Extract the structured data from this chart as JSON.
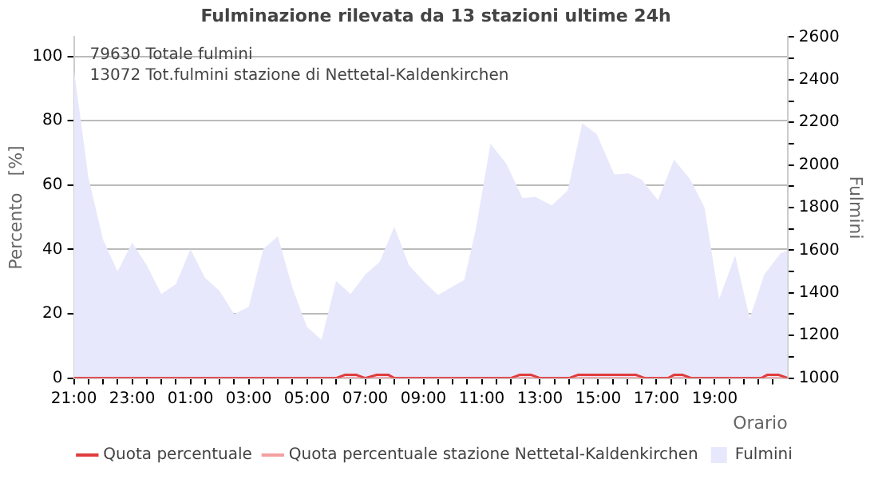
{
  "chart_data": {
    "type": "area",
    "title": "Fulminazione rilevata da 13 stazioni ultime 24h",
    "xlabel": "Orario",
    "ylabel": "Percento   [%]",
    "y2label": "Fulmini",
    "annotations": [
      "79630 Totale fulmini",
      "13072 Tot.fulmini stazione di Nettetal-Kaldenkirchen"
    ],
    "xlim": [
      "--01-01T21:00",
      "--01-02T21:30"
    ],
    "xticks": [
      {
        "value": "--01-01T21:00",
        "label": "21:00"
      },
      {
        "value": "--01-01T21:30",
        "label": null
      },
      {
        "value": "--01-01T22:00",
        "label": null
      },
      {
        "value": "--01-01T22:30",
        "label": null
      },
      {
        "value": "--01-01T23:00",
        "label": "23:00"
      },
      {
        "value": "--01-01T23:30",
        "label": null
      },
      {
        "value": "--01-02T00:00",
        "label": null
      },
      {
        "value": "--01-02T00:30",
        "label": null
      },
      {
        "value": "--01-02T01:00",
        "label": "01:00"
      },
      {
        "value": "--01-02T01:30",
        "label": null
      },
      {
        "value": "--01-02T02:00",
        "label": null
      },
      {
        "value": "--01-02T02:30",
        "label": null
      },
      {
        "value": "--01-02T03:00",
        "label": "03:00"
      },
      {
        "value": "--01-02T03:30",
        "label": null
      },
      {
        "value": "--01-02T04:00",
        "label": null
      },
      {
        "value": "--01-02T04:30",
        "label": null
      },
      {
        "value": "--01-02T05:00",
        "label": "05:00"
      },
      {
        "value": "--01-02T05:30",
        "label": null
      },
      {
        "value": "--01-02T06:00",
        "label": null
      },
      {
        "value": "--01-02T06:30",
        "label": null
      },
      {
        "value": "--01-02T07:00",
        "label": "07:00"
      },
      {
        "value": "--01-02T07:30",
        "label": null
      },
      {
        "value": "--01-02T08:00",
        "label": null
      },
      {
        "value": "--01-02T08:30",
        "label": null
      },
      {
        "value": "--01-02T09:00",
        "label": "09:00"
      },
      {
        "value": "--01-02T09:30",
        "label": null
      },
      {
        "value": "--01-02T10:00",
        "label": null
      },
      {
        "value": "--01-02T10:30",
        "label": null
      },
      {
        "value": "--01-02T11:00",
        "label": "11:00"
      },
      {
        "value": "--01-02T11:30",
        "label": null
      },
      {
        "value": "--01-02T12:00",
        "label": null
      },
      {
        "value": "--01-02T12:30",
        "label": null
      },
      {
        "value": "--01-02T13:00",
        "label": "13:00"
      },
      {
        "value": "--01-02T13:30",
        "label": null
      },
      {
        "value": "--01-02T14:00",
        "label": null
      },
      {
        "value": "--01-02T14:30",
        "label": null
      },
      {
        "value": "--01-02T15:00",
        "label": "15:00"
      },
      {
        "value": "--01-02T15:30",
        "label": null
      },
      {
        "value": "--01-02T16:00",
        "label": null
      },
      {
        "value": "--01-02T16:30",
        "label": null
      },
      {
        "value": "--01-02T17:00",
        "label": "17:00"
      },
      {
        "value": "--01-02T17:30",
        "label": null
      },
      {
        "value": "--01-02T18:00",
        "label": null
      },
      {
        "value": "--01-02T18:30",
        "label": null
      },
      {
        "value": "--01-02T19:00",
        "label": "19:00"
      },
      {
        "value": "--01-02T19:30",
        "label": null
      },
      {
        "value": "--01-02T20:00",
        "label": null
      },
      {
        "value": "--01-02T20:30",
        "label": null
      },
      {
        "value": "--01-02T21:00",
        "label": null
      }
    ],
    "ylim": [
      0,
      106
    ],
    "yticks": [
      0,
      20,
      40,
      60,
      80,
      100
    ],
    "y2lim": [
      1000,
      2600
    ],
    "y2ticks": [
      1000,
      {
        "value": 1100,
        "label": null
      },
      1200,
      {
        "value": 1300,
        "label": null
      },
      1400,
      {
        "value": 1500,
        "label": null
      },
      1600,
      {
        "value": 1700,
        "label": null
      },
      1800,
      {
        "value": 1900,
        "label": null
      },
      2000,
      {
        "value": 2100,
        "label": null
      },
      2200,
      {
        "value": 2300,
        "label": null
      },
      2400,
      {
        "value": 2500,
        "label": null
      },
      2600
    ],
    "grid": "y",
    "legend": "bottom",
    "marker": "none",
    "series": [
      {
        "name": "Quota percentuale",
        "type": "line",
        "color": "#e03c3c",
        "x": [
          "--01-01T21:00",
          "--01-02T06:00",
          "--01-02T06:18",
          "--01-02T06:42",
          "--01-02T07:00",
          "--01-02T07:24",
          "--01-02T07:48",
          "--01-02T08:00",
          "--01-02T12:00",
          "--01-02T12:18",
          "--01-02T12:42",
          "--01-02T13:00",
          "--01-02T14:00",
          "--01-02T14:18",
          "--01-02T16:18",
          "--01-02T16:36",
          "--01-02T17:24",
          "--01-02T17:36",
          "--01-02T17:54",
          "--01-02T18:12",
          "--01-02T20:36",
          "--01-02T20:48",
          "--01-02T21:12",
          "--01-02T21:30"
        ],
        "values": [
          0,
          0,
          1,
          1,
          0,
          1,
          1,
          0,
          0,
          1,
          1,
          0,
          0,
          1,
          1,
          0,
          0,
          1,
          1,
          0,
          0,
          1,
          1,
          0
        ]
      },
      {
        "name": "Quota percentuale stazione Nettetal-Kaldenkirchen",
        "type": "line",
        "color": "#f4a0a0",
        "x": [
          "--01-01T21:00",
          "--01-02T21:30"
        ],
        "values": [
          0,
          0
        ]
      },
      {
        "name": "Fulmini",
        "axis": "y2",
        "color": "#e8e8fc",
        "x": [
          "--01-01T21:00",
          "--01-01T21:30",
          "--01-01T22:00",
          "--01-01T22:30",
          "--01-01T23:00",
          "--01-01T23:30",
          "--01-02T00:00",
          "--01-02T00:30",
          "--01-02T01:00",
          "--01-02T01:30",
          "--01-02T02:00",
          "--01-02T02:30",
          "--01-02T03:00",
          "--01-02T03:30",
          "--01-02T04:00",
          "--01-02T04:30",
          "--01-02T05:00",
          "--01-02T05:30",
          "--01-02T06:00",
          "--01-02T06:30",
          "--01-02T07:00",
          "--01-02T07:30",
          "--01-02T08:00",
          "--01-02T08:30",
          "--01-02T09:00",
          "--01-02T09:30",
          "--01-02T10:12",
          "--01-02T10:24",
          "--01-02T10:48",
          "--01-02T11:18",
          "--01-02T11:51",
          "--01-02T12:24",
          "--01-02T12:51",
          "--01-02T13:24",
          "--01-02T13:57",
          "--01-02T14:27",
          "--01-02T14:57",
          "--01-02T15:33",
          "--01-02T16:03",
          "--01-02T16:30",
          "--01-02T17:03",
          "--01-02T17:36",
          "--01-02T18:09",
          "--01-02T18:39",
          "--01-02T19:09",
          "--01-02T19:42",
          "--01-02T20:12",
          "--01-02T20:42",
          "--01-02T21:15",
          "--01-02T21:30"
        ],
        "values": [
          2450,
          1940,
          1650,
          1500,
          1635,
          1530,
          1395,
          1440,
          1605,
          1470,
          1410,
          1300,
          1335,
          1605,
          1665,
          1425,
          1240,
          1180,
          1455,
          1395,
          1485,
          1545,
          1710,
          1530,
          1455,
          1390,
          1445,
          1460,
          1700,
          2100,
          2005,
          1845,
          1850,
          1810,
          1880,
          2195,
          2145,
          1955,
          1960,
          1930,
          1835,
          2025,
          1935,
          1800,
          1370,
          1575,
          1280,
          1485,
          1585,
          1600
        ]
      }
    ]
  }
}
